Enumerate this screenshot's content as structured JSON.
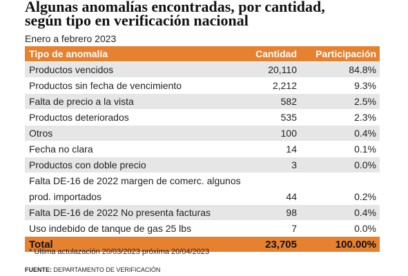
{
  "title_line1": "Algunas anomalías encontradas, por cantidad,",
  "title_line2": "según tipo en verificación nacional",
  "subtitle": "Enero a febrero 2023",
  "columns": {
    "tipo": "Tipo de anomalía",
    "cantidad": "Cantidad",
    "participacion": "Participación"
  },
  "rows": [
    {
      "tipo": "Productos vencidos",
      "cantidad": "20,110",
      "participacion": "84.8%"
    },
    {
      "tipo": "Productos sin fecha de vencimiento",
      "cantidad": "2,212",
      "participacion": "9.3%"
    },
    {
      "tipo": "Falta de precio a la vista",
      "cantidad": "582",
      "participacion": "2.5%"
    },
    {
      "tipo": "Productos deteriorados",
      "cantidad": "535",
      "participacion": "2.3%"
    },
    {
      "tipo": "Otros",
      "cantidad": "100",
      "participacion": "0.4%"
    },
    {
      "tipo": "Fecha no clara",
      "cantidad": "14",
      "participacion": "0.1%"
    },
    {
      "tipo": "Productos con doble precio",
      "cantidad": "3",
      "participacion": "0.0%"
    },
    {
      "tipo": "Falta DE-16 de 2022 margen de comerc. algunos",
      "cantidad": "",
      "participacion": ""
    },
    {
      "tipo": "prod. importados",
      "cantidad": "44",
      "participacion": "0.2%"
    },
    {
      "tipo": "Falta DE-16 de 2022 No presenta facturas",
      "cantidad": "98",
      "participacion": "0.4%"
    },
    {
      "tipo": "Uso indebido de tanque de gas 25 lbs",
      "cantidad": "7",
      "participacion": "0.0%"
    }
  ],
  "total": {
    "tipo": "Total",
    "cantidad": "23,705",
    "participacion": "100.00%"
  },
  "note": "* Última actulazación 20/03/2023 próxima 20/04/2023",
  "source_label": "FUENTE:",
  "source_text": " DEPARTAMENTO DE VERIFICACIÓN",
  "colors": {
    "accent": "#e6812f",
    "stripe": "#e6e6e6"
  }
}
